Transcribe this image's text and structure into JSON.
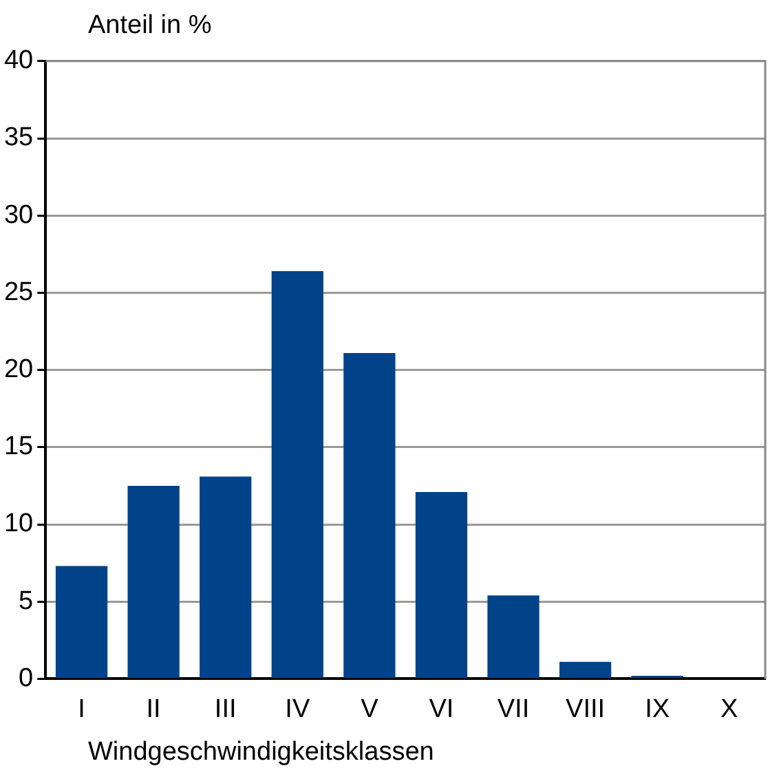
{
  "chart_data": {
    "type": "bar",
    "ylabel": "Anteil in %",
    "xlabel": "Windgeschwindigkeitsklassen",
    "categories": [
      "I",
      "II",
      "III",
      "IV",
      "V",
      "VI",
      "VII",
      "VIII",
      "IX",
      "X"
    ],
    "values": [
      7.3,
      12.5,
      13.1,
      26.4,
      21.1,
      12.1,
      5.4,
      1.1,
      0.2,
      0
    ],
    "color": "#004389",
    "ylim": [
      0,
      40
    ],
    "yticks": [
      0,
      5,
      10,
      15,
      20,
      25,
      30,
      35,
      40
    ],
    "grid": "y",
    "legend": false
  }
}
